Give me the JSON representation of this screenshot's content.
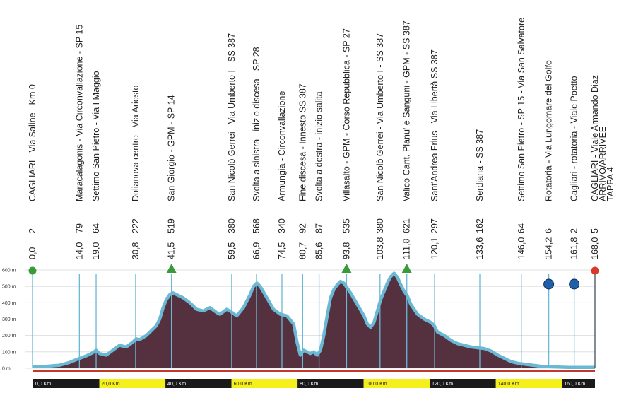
{
  "chart_data": {
    "type": "area",
    "title": "",
    "xlabel": "",
    "ylabel": "",
    "xlim": [
      0,
      168
    ],
    "ylim": [
      0,
      600
    ],
    "y_ticks": [
      "0 m",
      "100 m",
      "200 m",
      "300 m",
      "400 m",
      "500 m",
      "600 m"
    ],
    "km_ticks": [
      "0,0 Km",
      "20,0 Km",
      "40,0 Km",
      "60,0 Km",
      "80,0 Km",
      "100,0 Km",
      "120,0 Km",
      "140,0 Km",
      "160,0 Km"
    ],
    "colors": {
      "fill": "#55303f",
      "outline": "#6ab8d4",
      "start_label": "#3a9a3a",
      "finish_label": "#d04a1e",
      "km_black": "#1a1a1a",
      "km_yellow": "#f5ef1c",
      "gpm_marker": "#3a9a3a",
      "sprint_marker": "#1f5fa8",
      "finish_marker": "#d83a2a"
    },
    "profile": [
      [
        0,
        10
      ],
      [
        4,
        12
      ],
      [
        8,
        18
      ],
      [
        11,
        35
      ],
      [
        14,
        60
      ],
      [
        16,
        75
      ],
      [
        18,
        95
      ],
      [
        19,
        110
      ],
      [
        20,
        90
      ],
      [
        22,
        80
      ],
      [
        24,
        110
      ],
      [
        26,
        140
      ],
      [
        28,
        130
      ],
      [
        30,
        160
      ],
      [
        31,
        180
      ],
      [
        32,
        175
      ],
      [
        34,
        200
      ],
      [
        36,
        240
      ],
      [
        37,
        260
      ],
      [
        38,
        300
      ],
      [
        39,
        370
      ],
      [
        40,
        420
      ],
      [
        41,
        450
      ],
      [
        42,
        460
      ],
      [
        43,
        450
      ],
      [
        45,
        430
      ],
      [
        47,
        400
      ],
      [
        49,
        360
      ],
      [
        51,
        350
      ],
      [
        53,
        370
      ],
      [
        55,
        340
      ],
      [
        56,
        330
      ],
      [
        58,
        360
      ],
      [
        59,
        350
      ],
      [
        61,
        320
      ],
      [
        63,
        370
      ],
      [
        65,
        450
      ],
      [
        66,
        500
      ],
      [
        67,
        520
      ],
      [
        68,
        500
      ],
      [
        70,
        430
      ],
      [
        72,
        360
      ],
      [
        74,
        330
      ],
      [
        76,
        320
      ],
      [
        78,
        270
      ],
      [
        79,
        160
      ],
      [
        80,
        80
      ],
      [
        81,
        110
      ],
      [
        83,
        90
      ],
      [
        84,
        100
      ],
      [
        85,
        80
      ],
      [
        86,
        110
      ],
      [
        87,
        200
      ],
      [
        88,
        320
      ],
      [
        89,
        430
      ],
      [
        90,
        480
      ],
      [
        91,
        510
      ],
      [
        92,
        530
      ],
      [
        93,
        520
      ],
      [
        95,
        460
      ],
      [
        97,
        390
      ],
      [
        99,
        320
      ],
      [
        100,
        270
      ],
      [
        101,
        250
      ],
      [
        102,
        280
      ],
      [
        103,
        350
      ],
      [
        104,
        420
      ],
      [
        105,
        470
      ],
      [
        106,
        520
      ],
      [
        107,
        560
      ],
      [
        108,
        580
      ],
      [
        109,
        555
      ],
      [
        110,
        510
      ],
      [
        111,
        470
      ],
      [
        112,
        440
      ],
      [
        113,
        390
      ],
      [
        115,
        330
      ],
      [
        117,
        300
      ],
      [
        119,
        280
      ],
      [
        120,
        260
      ],
      [
        121,
        220
      ],
      [
        123,
        200
      ],
      [
        125,
        170
      ],
      [
        127,
        150
      ],
      [
        129,
        140
      ],
      [
        131,
        130
      ],
      [
        133,
        125
      ],
      [
        135,
        120
      ],
      [
        137,
        105
      ],
      [
        139,
        80
      ],
      [
        141,
        60
      ],
      [
        143,
        40
      ],
      [
        145,
        30
      ],
      [
        148,
        22
      ],
      [
        152,
        12
      ],
      [
        156,
        8
      ],
      [
        160,
        5
      ],
      [
        164,
        5
      ],
      [
        168,
        5
      ]
    ],
    "waypoints": [
      {
        "km": "0,0",
        "alt": "2",
        "name": "CAGLIARI - Via Saline - Km 0",
        "kind": "start"
      },
      {
        "km": "14,0",
        "alt": "79",
        "name": "Maracalagonis - Via Circonvallazione - SP 15"
      },
      {
        "km": "19,0",
        "alt": "64",
        "name": "Settimo San Pietro - Via I Maggio"
      },
      {
        "km": "30,8",
        "alt": "222",
        "name": "Dolianova centro - Via Ariosto"
      },
      {
        "km": "41,5",
        "alt": "519",
        "name": "San Giorgio - GPM - SP 14",
        "kind": "gpm"
      },
      {
        "km": "59,5",
        "alt": "380",
        "name": "San Nicolò Gerrei - Via Umberto I - SS 387"
      },
      {
        "km": "66,9",
        "alt": "568",
        "name": "Svolta a sinistra - inizio discesa - SP 28"
      },
      {
        "km": "74,5",
        "alt": "340",
        "name": "Armungia - Circonvallazione"
      },
      {
        "km": "80,7",
        "alt": "92",
        "name": "Fine discesa - Innesto SS 387"
      },
      {
        "km": "85,6",
        "alt": "87",
        "name": "Svolta a destra - inizio salita"
      },
      {
        "km": "93,8",
        "alt": "535",
        "name": "Villasalto - GPM - Corso Repubblica - SP 27",
        "kind": "gpm"
      },
      {
        "km": "103,8",
        "alt": "380",
        "name": "San Nicolò Gerrei - Via Umberto I - SS 387"
      },
      {
        "km": "111,8",
        "alt": "621",
        "name": "Valico Cant. Planu' e Sanguni - GPM - SS 387",
        "kind": "gpm"
      },
      {
        "km": "120,1",
        "alt": "297",
        "name": "Sant'Andrea Frius - Via Libertà SS 387"
      },
      {
        "km": "133,6",
        "alt": "162",
        "name": "Serdiana - SS 387"
      },
      {
        "km": "146,0",
        "alt": "64",
        "name": "Settimo San Pietro - SP 15 - Via San Salvatore"
      },
      {
        "km": "154,2",
        "alt": "6",
        "name": "Rotatoria - Via Lungomare del Golfo",
        "kind": "sprint"
      },
      {
        "km": "161,8",
        "alt": "2",
        "name": "Cagliari - rotatoria - Viale Poetto",
        "kind": "sprint"
      },
      {
        "km": "168,0",
        "alt": "5",
        "name": "CAGLIARI - Viale Armando Diaz",
        "name2": "ARRIVO/ARRIVEE",
        "name3": "TAPPA 4",
        "kind": "finish"
      }
    ]
  }
}
